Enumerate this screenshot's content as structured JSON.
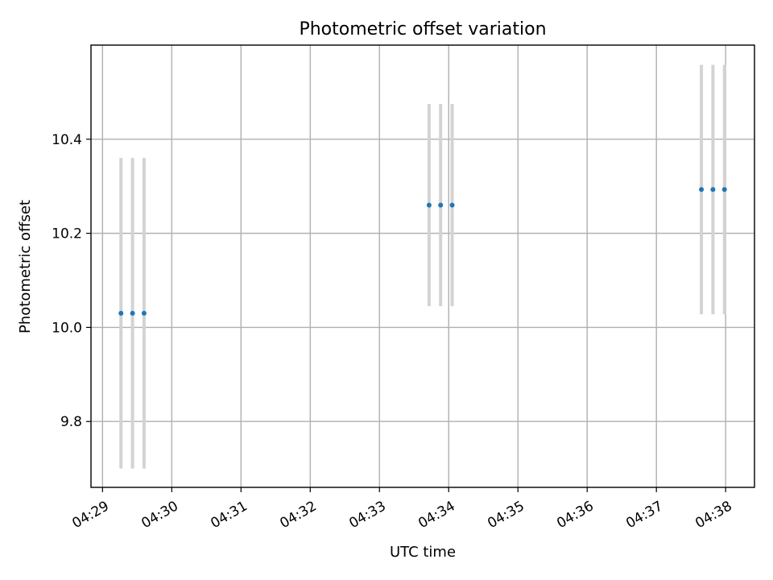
{
  "chart_data": {
    "type": "scatter",
    "title": "Photometric offset variation",
    "xlabel": "UTC time",
    "ylabel": "Photometric offset",
    "xlim": [
      "04:28:50",
      "04:38:25"
    ],
    "ylim": [
      9.66,
      10.6
    ],
    "grid": true,
    "x_ticks": [
      "04:29",
      "04:30",
      "04:31",
      "04:32",
      "04:33",
      "04:34",
      "04:35",
      "04:36",
      "04:37",
      "04:38"
    ],
    "y_ticks": [
      9.8,
      10.0,
      10.2,
      10.4
    ],
    "marker_color": "#1f77b4",
    "errorbar_color": "#d3d3d3",
    "points": [
      {
        "time": "04:29:16",
        "value": 10.03,
        "err": 0.33
      },
      {
        "time": "04:29:26",
        "value": 10.03,
        "err": 0.33
      },
      {
        "time": "04:29:36",
        "value": 10.03,
        "err": 0.33
      },
      {
        "time": "04:33:43",
        "value": 10.26,
        "err": 0.215
      },
      {
        "time": "04:33:53",
        "value": 10.26,
        "err": 0.215
      },
      {
        "time": "04:34:03",
        "value": 10.26,
        "err": 0.215
      },
      {
        "time": "04:37:39",
        "value": 10.293,
        "err": 0.265
      },
      {
        "time": "04:37:49",
        "value": 10.293,
        "err": 0.265
      },
      {
        "time": "04:37:59",
        "value": 10.293,
        "err": 0.265
      }
    ]
  }
}
